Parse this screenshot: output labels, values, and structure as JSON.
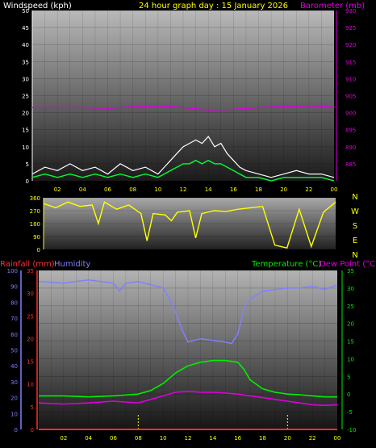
{
  "header": {
    "title": "24 hour graph day : 15 January 2026",
    "left_label": "Windspeed (kph)",
    "right_label": "Barometer (mb)"
  },
  "lower": {
    "rain_label": "Rainfall (mm)",
    "humidity_label": "Humidity",
    "temp_label": "Temperature (°C)",
    "dew_label": "Dew Point (°C)"
  },
  "colors": {
    "wind_gust": "#ffffff",
    "wind_avg": "#00ff33",
    "barometer": "#dd00dd",
    "direction": "#ffff00",
    "humidity": "#8080ff",
    "temperature": "#00ee00",
    "dewpoint": "#dd00dd",
    "rain": "#ff3030",
    "title": "#ffff00",
    "x_ticks": "#ffff00"
  },
  "chart_data": [
    {
      "type": "line",
      "name": "wind_and_pressure",
      "x_ticks": [
        "02",
        "04",
        "06",
        "08",
        "10",
        "12",
        "14",
        "16",
        "18",
        "20",
        "22",
        "00"
      ],
      "ylim": [
        0,
        50
      ],
      "yticks": [
        0,
        5,
        10,
        15,
        20,
        25,
        30,
        35,
        40,
        45,
        50
      ],
      "y2lim": [
        880,
        930
      ],
      "y2ticks": [
        885,
        890,
        895,
        900,
        905,
        910,
        915,
        920,
        925,
        930
      ],
      "series": [
        {
          "name": "Windspeed gust",
          "axis": "left",
          "x": [
            0,
            1,
            2,
            3,
            4,
            5,
            6,
            7,
            8,
            9,
            10,
            10.5,
            11,
            11.5,
            12,
            12.5,
            13,
            13.5,
            14,
            14.5,
            15,
            15.5,
            16,
            16.5,
            17,
            18,
            19,
            20,
            21,
            22,
            23,
            24
          ],
          "values": [
            2,
            4,
            3,
            5,
            3,
            4,
            2,
            5,
            3,
            4,
            2,
            4,
            6,
            8,
            10,
            11,
            12,
            11,
            13,
            10,
            11,
            8,
            6,
            4,
            3,
            2,
            1,
            2,
            3,
            2,
            2,
            1
          ]
        },
        {
          "name": "Windspeed average",
          "axis": "left",
          "x": [
            0,
            1,
            2,
            3,
            4,
            5,
            6,
            7,
            8,
            9,
            10,
            10.5,
            11,
            11.5,
            12,
            12.5,
            13,
            13.5,
            14,
            14.5,
            15,
            15.5,
            16,
            16.5,
            17,
            18,
            19,
            20,
            21,
            22,
            23,
            24
          ],
          "values": [
            1,
            2,
            1,
            2,
            1,
            2,
            1,
            2,
            1,
            2,
            1,
            2,
            3,
            4,
            5,
            5,
            6,
            5,
            6,
            5,
            5,
            4,
            3,
            2,
            1,
            1,
            0,
            1,
            1,
            1,
            1,
            0
          ]
        },
        {
          "name": "Barometer",
          "axis": "right",
          "x": [
            0,
            2,
            4,
            6,
            8,
            10,
            12,
            14,
            16,
            18,
            20,
            22,
            24
          ],
          "values": [
            901.5,
            901.5,
            901.5,
            901.3,
            901.7,
            902,
            901.5,
            900.8,
            901,
            901.5,
            901.8,
            902,
            901.7
          ]
        }
      ]
    },
    {
      "type": "line",
      "name": "wind_direction",
      "ylim": [
        0,
        360
      ],
      "yticks": [
        0,
        90,
        180,
        270,
        360
      ],
      "compass": [
        "N",
        "W",
        "S",
        "E",
        "N"
      ],
      "series": [
        {
          "name": "Wind direction",
          "x": [
            0,
            1,
            2,
            3,
            4,
            4.5,
            5,
            6,
            7,
            8,
            8.5,
            9,
            10,
            10.5,
            11,
            12,
            12.5,
            13,
            14,
            15,
            16,
            17,
            18,
            19,
            20,
            21,
            22,
            23,
            24
          ],
          "values": [
            320,
            290,
            330,
            300,
            310,
            180,
            330,
            280,
            310,
            250,
            60,
            250,
            240,
            200,
            260,
            270,
            80,
            250,
            270,
            265,
            280,
            290,
            300,
            30,
            10,
            280,
            20,
            260,
            330
          ]
        }
      ]
    },
    {
      "type": "line",
      "name": "rain_humidity_temperature",
      "x_ticks": [
        "02",
        "04",
        "06",
        "08",
        "10",
        "12",
        "14",
        "16",
        "18",
        "20",
        "22",
        "00"
      ],
      "ylim": [
        0,
        100
      ],
      "yticks_humidity": [
        0,
        10,
        20,
        30,
        40,
        50,
        60,
        70,
        80,
        90,
        100
      ],
      "yticks_rain": [
        0,
        5,
        10,
        15,
        20,
        25,
        30,
        35
      ],
      "y2lim": [
        -10,
        35
      ],
      "y2ticks": [
        -10,
        -5,
        0,
        5,
        10,
        15,
        20,
        25,
        30,
        35
      ],
      "series": [
        {
          "name": "Humidity",
          "axis": "left",
          "x": [
            0,
            2,
            4,
            6,
            6.5,
            7,
            8,
            9,
            10,
            10.5,
            11,
            11.5,
            12,
            13,
            14,
            15,
            15.5,
            16,
            16.5,
            17,
            18,
            19,
            20,
            21,
            22,
            23,
            24
          ],
          "values": [
            93,
            92,
            94,
            92,
            87,
            92,
            93,
            91,
            89,
            82,
            74,
            63,
            55,
            57,
            56,
            55,
            54,
            60,
            76,
            82,
            87,
            88,
            89,
            89,
            90,
            88,
            91
          ]
        },
        {
          "name": "Temperature",
          "axis": "right",
          "x": [
            0,
            2,
            4,
            6,
            8,
            9,
            10,
            11,
            12,
            13,
            14,
            15,
            16,
            16.5,
            17,
            18,
            19,
            20,
            21,
            22,
            23,
            24
          ],
          "values": [
            -0.5,
            -0.5,
            -0.8,
            -0.5,
            0,
            1,
            3,
            6,
            8,
            9,
            9.5,
            9.5,
            9,
            7,
            4,
            1.5,
            0.5,
            0,
            -0.2,
            -0.5,
            -0.8,
            -0.8
          ]
        },
        {
          "name": "Dew Point",
          "axis": "right",
          "x": [
            0,
            2,
            4,
            6,
            8,
            9,
            10,
            11,
            12,
            13,
            14,
            15,
            16,
            17,
            18,
            19,
            20,
            21,
            22,
            23,
            24
          ],
          "values": [
            -2.5,
            -2.8,
            -2.5,
            -2,
            -2.5,
            -1.5,
            -0.5,
            0.5,
            0.8,
            0.5,
            0.5,
            0.3,
            0,
            -0.5,
            -1,
            -1.5,
            -2,
            -2.5,
            -3,
            -3.2,
            -3
          ]
        },
        {
          "name": "Rainfall",
          "axis": "rain",
          "x": [
            0,
            24
          ],
          "values": [
            0,
            0
          ]
        }
      ]
    }
  ]
}
